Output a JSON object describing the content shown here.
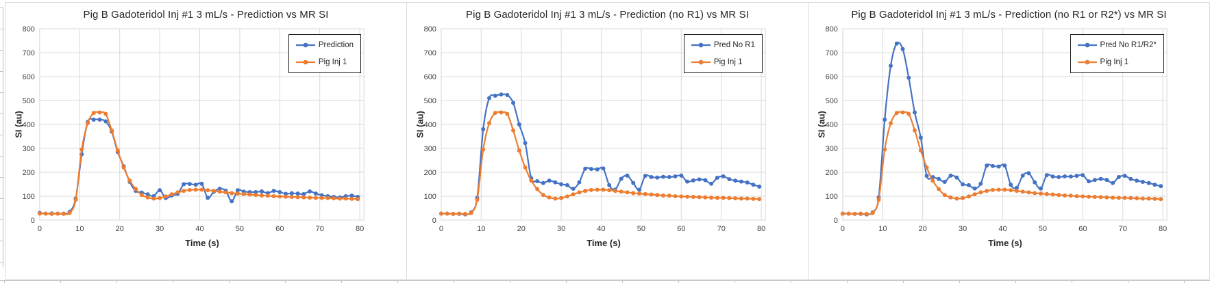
{
  "colors": {
    "series_blue": "#4472C4",
    "series_orange": "#ED7D31",
    "gridline": "#D9D9D9",
    "tick_label": "#404040",
    "title_text": "#262626",
    "legend_border": "#1A1A1A"
  },
  "chart_data": [
    {
      "type": "line",
      "title": "Pig B Gadoteridol Inj #1 3 mL/s - Prediction vs MR SI",
      "xlabel": "Time (s)",
      "ylabel": "SI (au)",
      "xlim": [
        0,
        80
      ],
      "ylim": [
        0,
        800
      ],
      "x_ticks": [
        0,
        10,
        20,
        30,
        40,
        50,
        60,
        70,
        80
      ],
      "y_ticks": [
        0,
        100,
        200,
        300,
        400,
        500,
        600,
        700,
        800
      ],
      "grid": true,
      "legend_position": "top-right",
      "x": [
        0,
        1.5,
        3,
        4.5,
        6,
        7.5,
        9,
        10.5,
        12,
        13.5,
        15,
        16.5,
        18,
        19.5,
        21,
        22.5,
        24,
        25.5,
        27,
        28.5,
        30,
        31.5,
        33,
        34.5,
        36,
        37.5,
        39,
        40.5,
        42,
        43.5,
        45,
        46.5,
        48,
        49.5,
        51,
        52.5,
        54,
        55.5,
        57,
        58.5,
        60,
        61.5,
        63,
        64.5,
        66,
        67.5,
        69,
        70.5,
        72,
        73.5,
        75,
        76.5,
        78,
        79.5
      ],
      "series": [
        {
          "name": "Prediction",
          "color": "#4472C4",
          "marker": "circle",
          "values": [
            30,
            27,
            28,
            27,
            27,
            35,
            90,
            275,
            410,
            420,
            420,
            413,
            370,
            285,
            225,
            160,
            122,
            115,
            108,
            100,
            125,
            92,
            103,
            110,
            150,
            151,
            148,
            152,
            93,
            118,
            131,
            123,
            79,
            125,
            119,
            117,
            117,
            120,
            113,
            122,
            117,
            110,
            112,
            111,
            109,
            120,
            111,
            104,
            100,
            97,
            95,
            100,
            102,
            97
          ]
        },
        {
          "name": "Pig Inj 1",
          "color": "#ED7D31",
          "marker": "circle",
          "values": [
            27,
            27,
            26,
            27,
            26,
            30,
            85,
            295,
            405,
            448,
            450,
            444,
            375,
            291,
            220,
            165,
            130,
            105,
            95,
            90,
            92,
            99,
            108,
            116,
            122,
            126,
            127,
            127,
            125,
            122,
            119,
            116,
            113,
            111,
            109,
            107,
            105,
            103,
            102,
            100,
            99,
            98,
            97,
            96,
            95,
            94,
            93,
            93,
            92,
            91,
            90,
            90,
            89,
            88
          ]
        }
      ]
    },
    {
      "type": "line",
      "title": "Pig B Gadoteridol Inj #1 3 mL/s - Prediction (no R1) vs MR SI",
      "xlabel": "Time (s)",
      "ylabel": "SI (au)",
      "xlim": [
        0,
        80
      ],
      "ylim": [
        0,
        800
      ],
      "x_ticks": [
        0,
        10,
        20,
        30,
        40,
        50,
        60,
        70,
        80
      ],
      "y_ticks": [
        0,
        100,
        200,
        300,
        400,
        500,
        600,
        700,
        800
      ],
      "grid": true,
      "legend_position": "top-right",
      "x": [
        0,
        1.5,
        3,
        4.5,
        6,
        7.5,
        9,
        10.5,
        12,
        13.5,
        15,
        16.5,
        18,
        19.5,
        21,
        22.5,
        24,
        25.5,
        27,
        28.5,
        30,
        31.5,
        33,
        34.5,
        36,
        37.5,
        39,
        40.5,
        42,
        43.5,
        45,
        46.5,
        48,
        49.5,
        51,
        52.5,
        54,
        55.5,
        57,
        58.5,
        60,
        61.5,
        63,
        64.5,
        66,
        67.5,
        69,
        70.5,
        72,
        73.5,
        75,
        76.5,
        78,
        79.5
      ],
      "series": [
        {
          "name": "Pred No R1",
          "color": "#4472C4",
          "marker": "circle",
          "values": [
            27,
            27,
            26,
            26,
            24,
            33,
            93,
            380,
            510,
            520,
            525,
            523,
            490,
            400,
            322,
            175,
            163,
            155,
            165,
            158,
            150,
            146,
            131,
            158,
            215,
            214,
            212,
            216,
            146,
            128,
            173,
            186,
            155,
            127,
            185,
            180,
            178,
            181,
            180,
            183,
            186,
            161,
            166,
            170,
            167,
            152,
            177,
            183,
            171,
            165,
            161,
            157,
            148,
            140
          ]
        },
        {
          "name": "Pig Inj 1",
          "color": "#ED7D31",
          "marker": "circle",
          "values": [
            27,
            27,
            26,
            27,
            26,
            30,
            85,
            295,
            405,
            448,
            450,
            444,
            375,
            291,
            220,
            165,
            130,
            105,
            95,
            90,
            92,
            99,
            108,
            116,
            122,
            126,
            127,
            127,
            125,
            122,
            119,
            116,
            113,
            111,
            109,
            107,
            105,
            103,
            102,
            100,
            99,
            98,
            97,
            96,
            95,
            94,
            93,
            93,
            92,
            91,
            90,
            90,
            89,
            88
          ]
        }
      ]
    },
    {
      "type": "line",
      "title": "Pig B Gadoteridol Inj #1 3 mL/s - Prediction (no R1 or R2*) vs MR SI",
      "xlabel": "Time (s)",
      "ylabel": "SI (au)",
      "xlim": [
        0,
        80
      ],
      "ylim": [
        0,
        800
      ],
      "x_ticks": [
        0,
        10,
        20,
        30,
        40,
        50,
        60,
        70,
        80
      ],
      "y_ticks": [
        0,
        100,
        200,
        300,
        400,
        500,
        600,
        700,
        800
      ],
      "grid": true,
      "legend_position": "top-right",
      "x": [
        0,
        1.5,
        3,
        4.5,
        6,
        7.5,
        9,
        10.5,
        12,
        13.5,
        15,
        16.5,
        18,
        19.5,
        21,
        22.5,
        24,
        25.5,
        27,
        28.5,
        30,
        31.5,
        33,
        34.5,
        36,
        37.5,
        39,
        40.5,
        42,
        43.5,
        45,
        46.5,
        48,
        49.5,
        51,
        52.5,
        54,
        55.5,
        57,
        58.5,
        60,
        61.5,
        63,
        64.5,
        66,
        67.5,
        69,
        70.5,
        72,
        73.5,
        75,
        76.5,
        78,
        79.5
      ],
      "series": [
        {
          "name": "Pred No R1/R2*",
          "color": "#4472C4",
          "marker": "circle",
          "values": [
            27,
            27,
            26,
            26,
            24,
            33,
            95,
            420,
            645,
            738,
            715,
            595,
            450,
            345,
            185,
            180,
            172,
            160,
            186,
            178,
            150,
            146,
            132,
            152,
            228,
            226,
            224,
            228,
            148,
            135,
            186,
            196,
            158,
            132,
            188,
            182,
            180,
            183,
            182,
            185,
            188,
            162,
            168,
            172,
            168,
            155,
            180,
            185,
            172,
            165,
            160,
            155,
            148,
            142
          ]
        },
        {
          "name": "Pig Inj 1",
          "color": "#ED7D31",
          "marker": "circle",
          "values": [
            27,
            27,
            26,
            27,
            26,
            30,
            85,
            295,
            405,
            448,
            450,
            444,
            375,
            291,
            220,
            165,
            130,
            105,
            95,
            90,
            92,
            99,
            108,
            116,
            122,
            126,
            127,
            127,
            125,
            122,
            119,
            116,
            113,
            111,
            109,
            107,
            105,
            103,
            102,
            100,
            99,
            98,
            97,
            96,
            95,
            94,
            93,
            93,
            92,
            91,
            90,
            90,
            89,
            88
          ]
        }
      ]
    }
  ]
}
